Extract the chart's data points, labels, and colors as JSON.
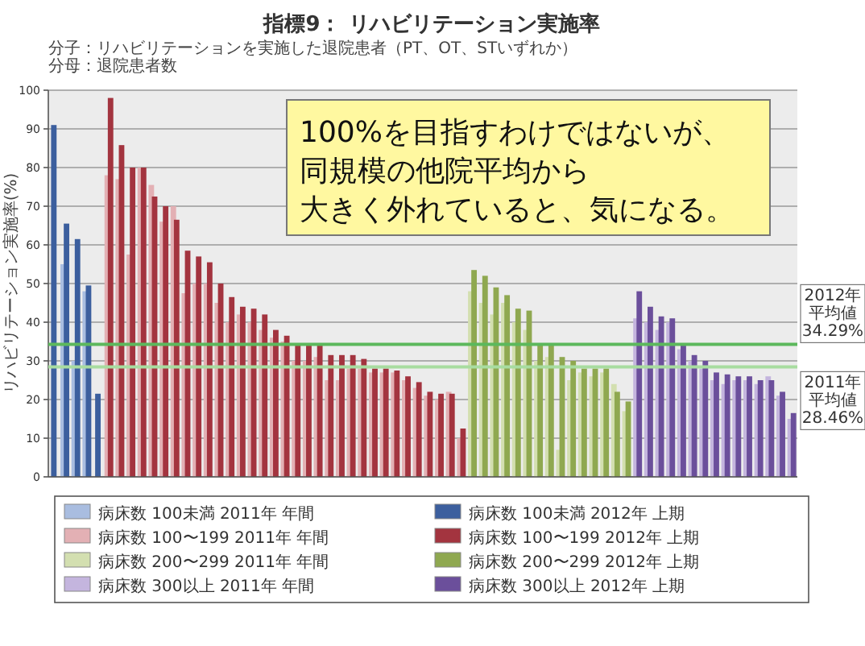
{
  "chart_data": {
    "type": "bar",
    "title": "指標9： リハビリテーション実施率",
    "ylabel": "リハビリテーション実施率(%)",
    "annotations": [
      "分子：リハビリテーションを実施した退院患者（PT、OT、STいずれか）",
      "分母：退院患者数",
      "100%を目指すわけではないが、",
      "同規模の他院平均から",
      "大きく外れていると、気になる。"
    ],
    "categories": [
      null,
      null,
      null,
      null,
      null,
      null,
      null,
      null,
      null,
      null,
      null,
      null,
      null,
      null,
      null,
      null,
      null,
      null,
      null,
      null,
      null,
      null,
      null,
      null,
      null,
      null,
      null,
      null,
      null,
      null,
      null,
      null,
      null,
      null,
      null,
      null,
      null,
      null,
      null,
      null,
      null,
      null,
      null,
      null,
      null,
      null,
      null,
      null,
      null,
      null,
      null,
      null,
      null,
      null,
      null,
      null,
      null,
      null,
      null,
      null,
      null,
      null,
      null,
      null,
      null,
      null,
      null,
      null
    ],
    "series": [
      {
        "name": "病床数 100未満 2011年 年間",
        "color": "#a9bde0",
        "values": [
          null,
          55,
          30,
          48,
          null,
          null,
          null,
          null,
          null,
          null,
          null,
          null,
          null,
          null,
          null,
          null,
          null,
          null,
          null,
          null,
          null,
          null,
          null,
          null,
          null,
          null,
          null,
          null,
          null,
          null,
          null,
          null,
          null,
          null,
          null,
          null,
          null,
          null,
          null,
          null,
          null,
          null,
          null,
          null,
          null,
          null,
          null,
          null,
          null,
          null,
          null,
          null,
          null,
          null,
          null,
          null,
          null,
          null,
          null,
          null,
          null,
          null,
          null,
          null,
          null,
          null,
          null,
          null
        ]
      },
      {
        "name": "病床数 100未満 2012年 上期",
        "color": "#3c5f9e",
        "values": [
          91,
          65.5,
          61.5,
          49.5,
          21.5,
          null,
          null,
          null,
          null,
          null,
          null,
          null,
          null,
          null,
          null,
          null,
          null,
          null,
          null,
          null,
          null,
          null,
          null,
          null,
          null,
          null,
          null,
          null,
          null,
          null,
          null,
          null,
          null,
          null,
          null,
          null,
          null,
          null,
          null,
          null,
          null,
          null,
          null,
          null,
          null,
          null,
          null,
          null,
          null,
          null,
          null,
          null,
          null,
          null,
          null,
          null,
          null,
          null,
          null,
          null,
          null,
          null,
          null,
          null,
          null,
          null,
          null,
          null
        ]
      },
      {
        "name": "病床数 100〜199 2011年 年間",
        "color": "#e3b0b4",
        "values": [
          null,
          null,
          null,
          null,
          null,
          78,
          77,
          57.5,
          80,
          75.5,
          66,
          70,
          47.5,
          50,
          50,
          45,
          40,
          42,
          40,
          38,
          36,
          35,
          30,
          30,
          31,
          25,
          25,
          28,
          28,
          27,
          27,
          27,
          25,
          23,
          21,
          20,
          22,
          10,
          null,
          null,
          null,
          null,
          null,
          null,
          null,
          null,
          null,
          null,
          null,
          null,
          null,
          null,
          null,
          null,
          null,
          null,
          null,
          null,
          null,
          null,
          null,
          null,
          null,
          null,
          null,
          null,
          null,
          null
        ]
      },
      {
        "name": "病床数 100〜199 2012年 上期",
        "color": "#a3343f",
        "values": [
          null,
          null,
          null,
          null,
          null,
          98,
          85.8,
          80,
          80,
          72.5,
          70,
          66.5,
          58.5,
          57,
          55.5,
          50,
          46.5,
          44,
          43.5,
          42,
          38,
          36.5,
          34.5,
          34,
          34,
          31.5,
          31.5,
          31.5,
          30.5,
          28,
          28,
          27.5,
          26,
          24.5,
          22,
          21.5,
          21.5,
          12.5,
          null,
          null,
          null,
          null,
          null,
          null,
          null,
          null,
          null,
          null,
          null,
          null,
          null,
          null,
          null,
          null,
          null,
          null,
          null,
          null,
          null,
          null,
          null,
          null,
          null,
          null,
          null,
          null,
          null,
          null
        ]
      },
      {
        "name": "病床数 200〜299 2011年 年間",
        "color": "#d3dfb0",
        "values": [
          null,
          null,
          null,
          null,
          null,
          null,
          null,
          null,
          null,
          null,
          null,
          null,
          null,
          null,
          null,
          null,
          null,
          null,
          null,
          null,
          null,
          null,
          null,
          null,
          null,
          null,
          null,
          null,
          null,
          null,
          null,
          null,
          null,
          null,
          null,
          null,
          null,
          null,
          48,
          45,
          42,
          45,
          40,
          38,
          30,
          31,
          7,
          25,
          27,
          26,
          27,
          24,
          17,
          null,
          null,
          null,
          null,
          null,
          null,
          null,
          null,
          null,
          null,
          null,
          null,
          null,
          null,
          null
        ]
      },
      {
        "name": "病床数 200〜299 2012年 上期",
        "color": "#8fa850",
        "values": [
          null,
          null,
          null,
          null,
          null,
          null,
          null,
          null,
          null,
          null,
          null,
          null,
          null,
          null,
          null,
          null,
          null,
          null,
          null,
          null,
          null,
          null,
          null,
          null,
          null,
          null,
          null,
          null,
          null,
          null,
          null,
          null,
          null,
          null,
          null,
          null,
          null,
          null,
          53.5,
          52,
          49,
          47,
          43.5,
          43,
          34.5,
          34,
          31,
          30,
          28,
          28,
          28,
          22,
          19.5,
          null,
          null,
          null,
          null,
          null,
          null,
          null,
          null,
          null,
          null,
          null,
          null,
          null,
          null,
          null
        ]
      },
      {
        "name": "病床数 300以上 2011年 年間",
        "color": "#c4b5de",
        "values": [
          null,
          null,
          null,
          null,
          null,
          null,
          null,
          null,
          null,
          null,
          null,
          null,
          null,
          null,
          null,
          null,
          null,
          null,
          null,
          null,
          null,
          null,
          null,
          null,
          null,
          null,
          null,
          null,
          null,
          null,
          null,
          null,
          null,
          null,
          null,
          null,
          null,
          null,
          null,
          null,
          null,
          null,
          null,
          null,
          null,
          null,
          null,
          null,
          null,
          null,
          null,
          null,
          null,
          41,
          40,
          38,
          40,
          33,
          30,
          28,
          25,
          24,
          25,
          25,
          24,
          26,
          21,
          15
        ]
      },
      {
        "name": "病床数 300以上 2012年 上期",
        "color": "#6b4f9b",
        "values": [
          null,
          null,
          null,
          null,
          null,
          null,
          null,
          null,
          null,
          null,
          null,
          null,
          null,
          null,
          null,
          null,
          null,
          null,
          null,
          null,
          null,
          null,
          null,
          null,
          null,
          null,
          null,
          null,
          null,
          null,
          null,
          null,
          null,
          null,
          null,
          null,
          null,
          null,
          null,
          null,
          null,
          null,
          null,
          null,
          null,
          null,
          null,
          null,
          null,
          null,
          null,
          null,
          null,
          48,
          44,
          41.5,
          41,
          34,
          31.5,
          30,
          27,
          26.5,
          26,
          26,
          25,
          25,
          22,
          16.5
        ]
      }
    ],
    "ylim": [
      0,
      100
    ],
    "yticks": [
      0,
      10,
      20,
      30,
      40,
      50,
      60,
      70,
      80,
      90,
      100
    ],
    "ref_lines": [
      {
        "axis": "y",
        "value": 34.29,
        "label": "2012年平均値34.29%",
        "color": "#5cb85c"
      },
      {
        "axis": "y",
        "value": 28.46,
        "label": "2011年平均値28.46%",
        "color": "#a8dca0"
      }
    ],
    "grid": "y",
    "legend": "bottom"
  }
}
